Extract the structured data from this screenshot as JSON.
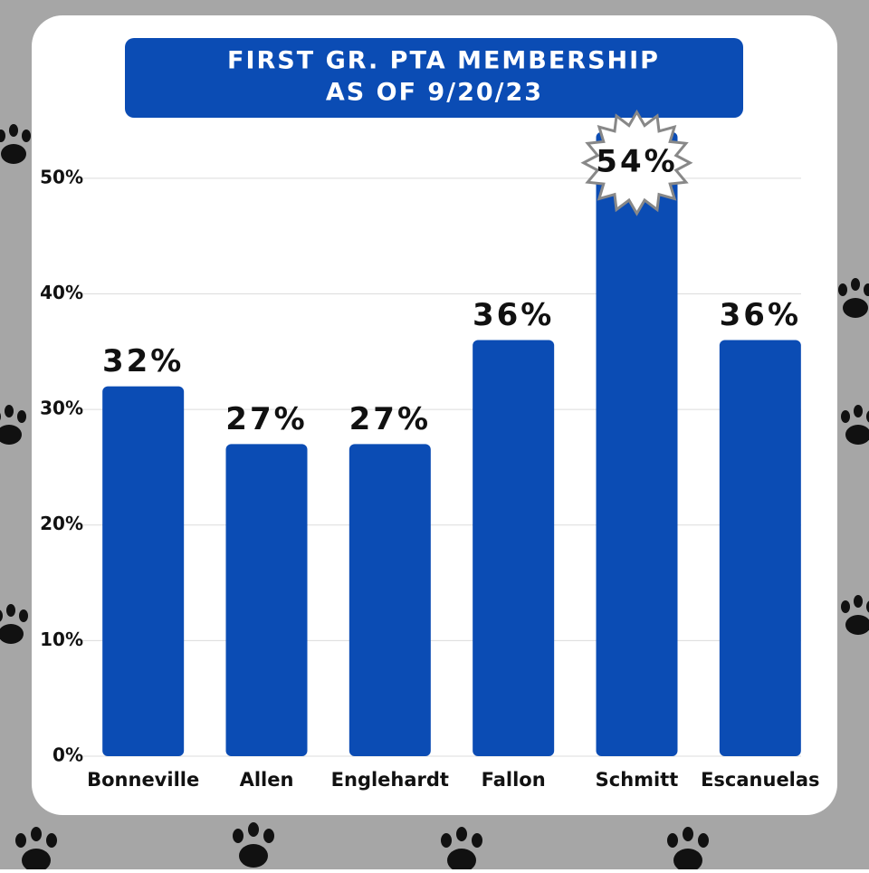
{
  "chart_data": {
    "type": "bar",
    "title": "FIRST GR. PTA MEMBERSHIP",
    "subtitle": "AS OF 9/20/23",
    "categories": [
      "Bonneville",
      "Allen",
      "Englehardt",
      "Fallon",
      "Schmitt",
      "Escanuelas"
    ],
    "values": [
      32,
      27,
      27,
      36,
      54,
      36
    ],
    "value_labels": [
      "32%",
      "27%",
      "27%",
      "36%",
      "54%",
      "36%"
    ],
    "color": "#0b4cb4",
    "ylim": [
      0,
      55
    ],
    "yticks": [
      {
        "value": 0,
        "label": "0%"
      },
      {
        "value": 10,
        "label": "10%"
      },
      {
        "value": 20,
        "label": "20%"
      },
      {
        "value": 30,
        "label": "30%"
      },
      {
        "value": 40,
        "label": "40%"
      },
      {
        "value": 50,
        "label": "50%"
      }
    ],
    "grid": true
  }
}
